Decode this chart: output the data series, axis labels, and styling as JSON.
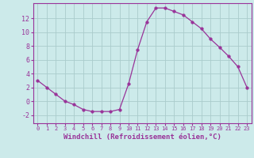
{
  "x": [
    0,
    1,
    2,
    3,
    4,
    5,
    6,
    7,
    8,
    9,
    10,
    11,
    12,
    13,
    14,
    15,
    16,
    17,
    18,
    19,
    20,
    21,
    22,
    23
  ],
  "y": [
    3.0,
    2.0,
    1.0,
    0.0,
    -0.5,
    -1.2,
    -1.5,
    -1.5,
    -1.5,
    -1.2,
    2.5,
    7.5,
    11.5,
    13.5,
    13.5,
    13.0,
    12.5,
    11.5,
    10.5,
    9.0,
    7.8,
    6.5,
    5.0,
    2.0
  ],
  "xlim": [
    -0.5,
    23.5
  ],
  "ylim": [
    -3.2,
    14.2
  ],
  "yticks": [
    -2,
    0,
    2,
    4,
    6,
    8,
    10,
    12
  ],
  "xticks": [
    0,
    1,
    2,
    3,
    4,
    5,
    6,
    7,
    8,
    9,
    10,
    11,
    12,
    13,
    14,
    15,
    16,
    17,
    18,
    19,
    20,
    21,
    22,
    23
  ],
  "xlabel": "Windchill (Refroidissement éolien,°C)",
  "line_color": "#993399",
  "marker": "o",
  "marker_size": 2.5,
  "bg_color": "#cceaea",
  "grid_color": "#aacccc",
  "xlabel_color": "#993399",
  "tick_color": "#993399",
  "spine_color": "#993399",
  "xtick_fontsize": 5.0,
  "ytick_fontsize": 6.0,
  "xlabel_fontsize": 6.5
}
